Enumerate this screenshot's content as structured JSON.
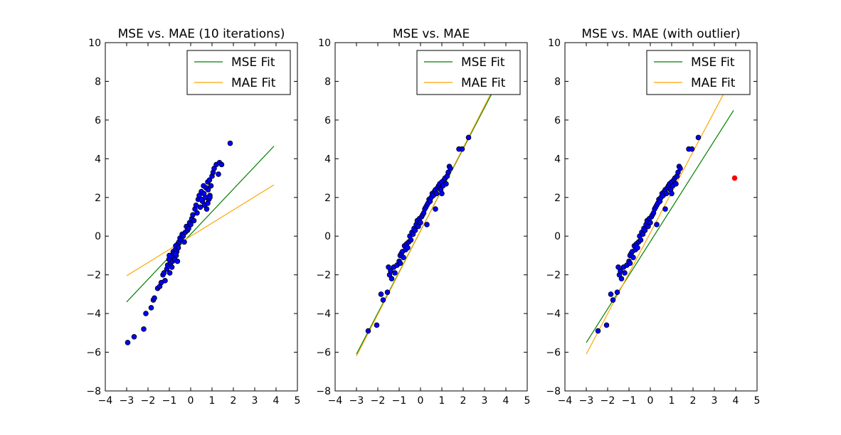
{
  "chart_data": [
    {
      "type": "scatter",
      "title": "MSE vs. MAE (10 iterations)",
      "xlim": [
        -4,
        5
      ],
      "ylim": [
        -8,
        10
      ],
      "xticks": [
        -4,
        -3,
        -2,
        -1,
        0,
        1,
        2,
        3,
        4,
        5
      ],
      "yticks": [
        -8,
        -6,
        -4,
        -2,
        0,
        2,
        4,
        6,
        8,
        10
      ],
      "grid": false,
      "legend_position": "top-right",
      "points": {
        "color": "#0000ff",
        "x": [
          -2.95,
          -2.65,
          -2.2,
          -2.1,
          -1.85,
          -1.75,
          -1.7,
          -1.55,
          -1.45,
          -1.38,
          -1.3,
          -1.25,
          -1.2,
          -1.12,
          -1.08,
          -1.02,
          -0.98,
          -0.95,
          -0.9,
          -0.88,
          -0.85,
          -0.82,
          -0.8,
          -0.78,
          -0.75,
          -0.72,
          -0.7,
          -0.68,
          -0.65,
          -0.62,
          -0.6,
          -0.58,
          -0.55,
          -0.5,
          -0.45,
          -0.4,
          -0.35,
          -0.3,
          -0.25,
          -0.2,
          -0.15,
          -0.1,
          -0.05,
          0.0,
          0.05,
          0.1,
          0.15,
          0.2,
          0.25,
          0.3,
          0.35,
          0.4,
          0.45,
          0.5,
          0.55,
          0.6,
          0.62,
          0.65,
          0.7,
          0.72,
          0.75,
          0.8,
          0.82,
          0.85,
          0.88,
          0.9,
          0.95,
          1.0,
          1.05,
          1.1,
          1.2,
          1.3,
          1.35,
          1.45,
          1.85,
          0.8,
          0.5,
          0.9,
          -1.0,
          -0.7
        ],
        "y": [
          -5.5,
          -5.2,
          -4.8,
          -4.0,
          -3.7,
          -3.3,
          -3.2,
          -2.7,
          -2.6,
          -2.4,
          -2.0,
          -1.9,
          -2.3,
          -1.7,
          -1.5,
          -1.2,
          -1.9,
          -1.4,
          -1.0,
          -1.6,
          -1.3,
          -0.8,
          -1.1,
          -0.9,
          -1.2,
          -0.7,
          -0.5,
          -1.0,
          -0.8,
          -1.3,
          -0.4,
          -0.6,
          -0.3,
          -0.1,
          -0.2,
          0.1,
          0.0,
          -0.3,
          0.2,
          0.5,
          0.3,
          0.4,
          0.7,
          0.6,
          0.9,
          1.1,
          0.8,
          1.4,
          1.6,
          1.2,
          1.9,
          2.1,
          1.5,
          2.3,
          1.8,
          2.6,
          2.2,
          1.6,
          2.0,
          2.5,
          1.4,
          2.8,
          2.4,
          1.9,
          2.9,
          2.1,
          2.6,
          3.1,
          3.3,
          3.5,
          3.7,
          3.2,
          3.8,
          3.7,
          4.8,
          1.7,
          1.9,
          2.0,
          -1.0,
          -0.9
        ]
      },
      "series": [
        {
          "name": "MSE Fit",
          "color": "#008000",
          "x": [
            -3.0,
            3.9
          ],
          "y": [
            -3.4,
            4.65
          ]
        },
        {
          "name": "MAE Fit",
          "color": "#ffa500",
          "x": [
            -3.0,
            3.9
          ],
          "y": [
            -2.05,
            2.65
          ]
        }
      ]
    },
    {
      "type": "scatter",
      "title": "MSE vs. MAE",
      "xlim": [
        -4,
        5
      ],
      "ylim": [
        -8,
        10
      ],
      "xticks": [
        -4,
        -3,
        -2,
        -1,
        0,
        1,
        2,
        3,
        4,
        5
      ],
      "yticks": [
        -8,
        -6,
        -4,
        -2,
        0,
        2,
        4,
        6,
        8,
        10
      ],
      "grid": false,
      "legend_position": "top-right",
      "points": {
        "color": "#0000ff",
        "x": [
          -2.45,
          -2.05,
          -1.85,
          -1.75,
          -1.55,
          -1.45,
          -1.4,
          -1.35,
          -1.25,
          -1.2,
          -1.1,
          -1.0,
          -0.95,
          -0.9,
          -0.85,
          -0.8,
          -0.75,
          -0.7,
          -0.65,
          -0.6,
          -0.55,
          -0.5,
          -0.45,
          -0.4,
          -0.35,
          -0.3,
          -0.25,
          -0.2,
          -0.15,
          -0.1,
          -0.05,
          0.0,
          0.05,
          0.1,
          0.15,
          0.2,
          0.25,
          0.3,
          0.35,
          0.4,
          0.45,
          0.5,
          0.55,
          0.6,
          0.65,
          0.7,
          0.75,
          0.8,
          0.85,
          0.9,
          0.95,
          1.0,
          1.05,
          1.1,
          1.15,
          1.2,
          1.25,
          1.3,
          1.35,
          1.4,
          1.8,
          1.95,
          2.25,
          -1.5,
          -0.95,
          0.3,
          0.7,
          1.0
        ],
        "y": [
          -4.9,
          -4.6,
          -3.0,
          -3.3,
          -2.9,
          -2.0,
          -1.8,
          -2.2,
          -1.6,
          -1.9,
          -1.5,
          -1.3,
          -1.0,
          -0.9,
          -0.8,
          -1.1,
          -0.5,
          -0.7,
          -0.4,
          -0.6,
          -0.3,
          0.0,
          -0.2,
          0.2,
          0.1,
          0.4,
          0.3,
          0.6,
          0.8,
          0.5,
          0.9,
          0.7,
          1.0,
          1.1,
          1.2,
          1.4,
          1.5,
          1.6,
          1.7,
          1.9,
          1.8,
          2.0,
          2.2,
          2.1,
          2.3,
          2.4,
          2.2,
          2.5,
          2.6,
          2.7,
          2.4,
          2.8,
          2.6,
          2.9,
          3.0,
          2.7,
          3.1,
          3.3,
          3.6,
          3.5,
          4.5,
          4.5,
          5.1,
          -1.6,
          -1.4,
          0.6,
          1.4,
          2.2
        ]
      },
      "series": [
        {
          "name": "MSE Fit",
          "color": "#008000",
          "x": [
            -3.0,
            3.45
          ],
          "y": [
            -6.1,
            7.6
          ]
        },
        {
          "name": "MAE Fit",
          "color": "#ffa500",
          "x": [
            -3.0,
            3.45
          ],
          "y": [
            -6.2,
            7.7
          ]
        }
      ]
    },
    {
      "type": "scatter",
      "title": "MSE vs. MAE (with outlier)",
      "xlim": [
        -4,
        5
      ],
      "ylim": [
        -8,
        10
      ],
      "xticks": [
        -4,
        -3,
        -2,
        -1,
        0,
        1,
        2,
        3,
        4,
        5
      ],
      "yticks": [
        -8,
        -6,
        -4,
        -2,
        0,
        2,
        4,
        6,
        8,
        10
      ],
      "grid": false,
      "legend_position": "top-right",
      "points": {
        "color": "#0000ff",
        "x": [
          -2.45,
          -2.05,
          -1.85,
          -1.75,
          -1.55,
          -1.45,
          -1.4,
          -1.35,
          -1.25,
          -1.2,
          -1.1,
          -1.0,
          -0.95,
          -0.9,
          -0.85,
          -0.8,
          -0.75,
          -0.7,
          -0.65,
          -0.6,
          -0.55,
          -0.5,
          -0.45,
          -0.4,
          -0.35,
          -0.3,
          -0.25,
          -0.2,
          -0.15,
          -0.1,
          -0.05,
          0.0,
          0.05,
          0.1,
          0.15,
          0.2,
          0.25,
          0.3,
          0.35,
          0.4,
          0.45,
          0.5,
          0.55,
          0.6,
          0.65,
          0.7,
          0.75,
          0.8,
          0.85,
          0.9,
          0.95,
          1.0,
          1.05,
          1.1,
          1.15,
          1.2,
          1.25,
          1.3,
          1.35,
          1.4,
          1.8,
          1.95,
          2.25,
          -1.5,
          -0.95,
          0.3,
          0.7,
          1.0
        ],
        "y": [
          -4.9,
          -4.6,
          -3.0,
          -3.3,
          -2.9,
          -2.0,
          -1.8,
          -2.2,
          -1.6,
          -1.9,
          -1.5,
          -1.3,
          -1.0,
          -0.9,
          -0.8,
          -1.1,
          -0.5,
          -0.7,
          -0.4,
          -0.6,
          -0.3,
          0.0,
          -0.2,
          0.2,
          0.1,
          0.4,
          0.3,
          0.6,
          0.8,
          0.5,
          0.9,
          0.7,
          1.0,
          1.1,
          1.2,
          1.4,
          1.5,
          1.6,
          1.7,
          1.9,
          1.8,
          2.0,
          2.2,
          2.1,
          2.3,
          2.4,
          2.2,
          2.5,
          2.6,
          2.7,
          2.4,
          2.8,
          2.6,
          2.9,
          3.0,
          2.7,
          3.1,
          3.3,
          3.6,
          3.5,
          4.5,
          4.5,
          5.1,
          -1.6,
          -1.4,
          0.6,
          1.4,
          2.2
        ]
      },
      "outlier": {
        "color": "#ff0000",
        "x": 3.95,
        "y": 3.0
      },
      "series": [
        {
          "name": "MSE Fit",
          "color": "#008000",
          "x": [
            -3.0,
            3.9
          ],
          "y": [
            -5.5,
            6.5
          ]
        },
        {
          "name": "MAE Fit",
          "color": "#ffa500",
          "x": [
            -3.0,
            3.6
          ],
          "y": [
            -6.1,
            7.7
          ]
        }
      ]
    }
  ]
}
